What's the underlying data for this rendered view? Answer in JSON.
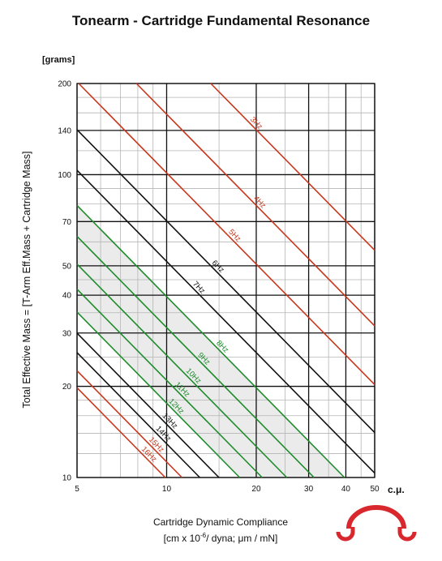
{
  "chart_data": {
    "type": "line",
    "title": "Tonearm - Cartridge Fundamental Resonance",
    "ylabel": "Total Effective Mass = [T-Arm Eff.Mass + Cartridge Mass]",
    "yunit": "[grams]",
    "xlabel": "Cartridge Dynamic Compliance",
    "xlabel_units": {
      "prefix": "[cm x 10",
      "exponent": "-6",
      "suffix": "/ dyna; μm / mN]"
    },
    "xunit": "c.μ.",
    "xscale": "log",
    "yscale": "log",
    "xlim": [
      5,
      50
    ],
    "ylim": [
      10,
      200
    ],
    "x_ticks": [
      5,
      10,
      20,
      30,
      40,
      50
    ],
    "y_ticks": [
      10,
      20,
      30,
      40,
      50,
      70,
      100,
      140,
      200
    ],
    "x_minor_grid": [
      6,
      7,
      8,
      9,
      15,
      25,
      35,
      45
    ],
    "y_minor_grid": [
      12,
      14,
      16,
      18,
      25,
      35,
      45,
      60,
      80,
      90,
      120,
      160,
      180
    ],
    "grid": true,
    "recommended_zone": {
      "from_hz": 8,
      "to_hz": 12,
      "color": "#ebebeb"
    },
    "series": [
      {
        "name": "3Hz",
        "hz": 3,
        "color": "#c8371c",
        "label_x": 19.5
      },
      {
        "name": "4Hz",
        "hz": 4,
        "color": "#c8371c",
        "label_x": 20.0
      },
      {
        "name": "5Hz",
        "hz": 5,
        "color": "#c8371c",
        "label_x": 16.5
      },
      {
        "name": "6Hz",
        "hz": 6,
        "color": "#111111",
        "label_x": 14.5
      },
      {
        "name": "7Hz",
        "hz": 7,
        "color": "#111111",
        "label_x": 12.5
      },
      {
        "name": "8Hz",
        "hz": 8,
        "color": "#1e8c2c",
        "label_x": 15.0
      },
      {
        "name": "9Hz",
        "hz": 9,
        "color": "#1e8c2c",
        "label_x": 13.0
      },
      {
        "name": "10Hz",
        "hz": 10,
        "color": "#1e8c2c",
        "label_x": 12.0
      },
      {
        "name": "11Hz",
        "hz": 11,
        "color": "#1e8c2c",
        "label_x": 11.0
      },
      {
        "name": "12Hz",
        "hz": 12,
        "color": "#1e8c2c",
        "label_x": 10.5
      },
      {
        "name": "13Hz",
        "hz": 13,
        "color": "#111111",
        "label_x": 10.0
      },
      {
        "name": "14Hz",
        "hz": 14,
        "color": "#111111",
        "label_x": 9.5
      },
      {
        "name": "15Hz",
        "hz": 15,
        "color": "#c8371c",
        "label_x": 9.0
      },
      {
        "name": "16Hz",
        "hz": 16,
        "color": "#c8371c",
        "label_x": 8.5
      }
    ]
  },
  "logo": {
    "name": "headphone-logo",
    "color": "#d8282e"
  }
}
